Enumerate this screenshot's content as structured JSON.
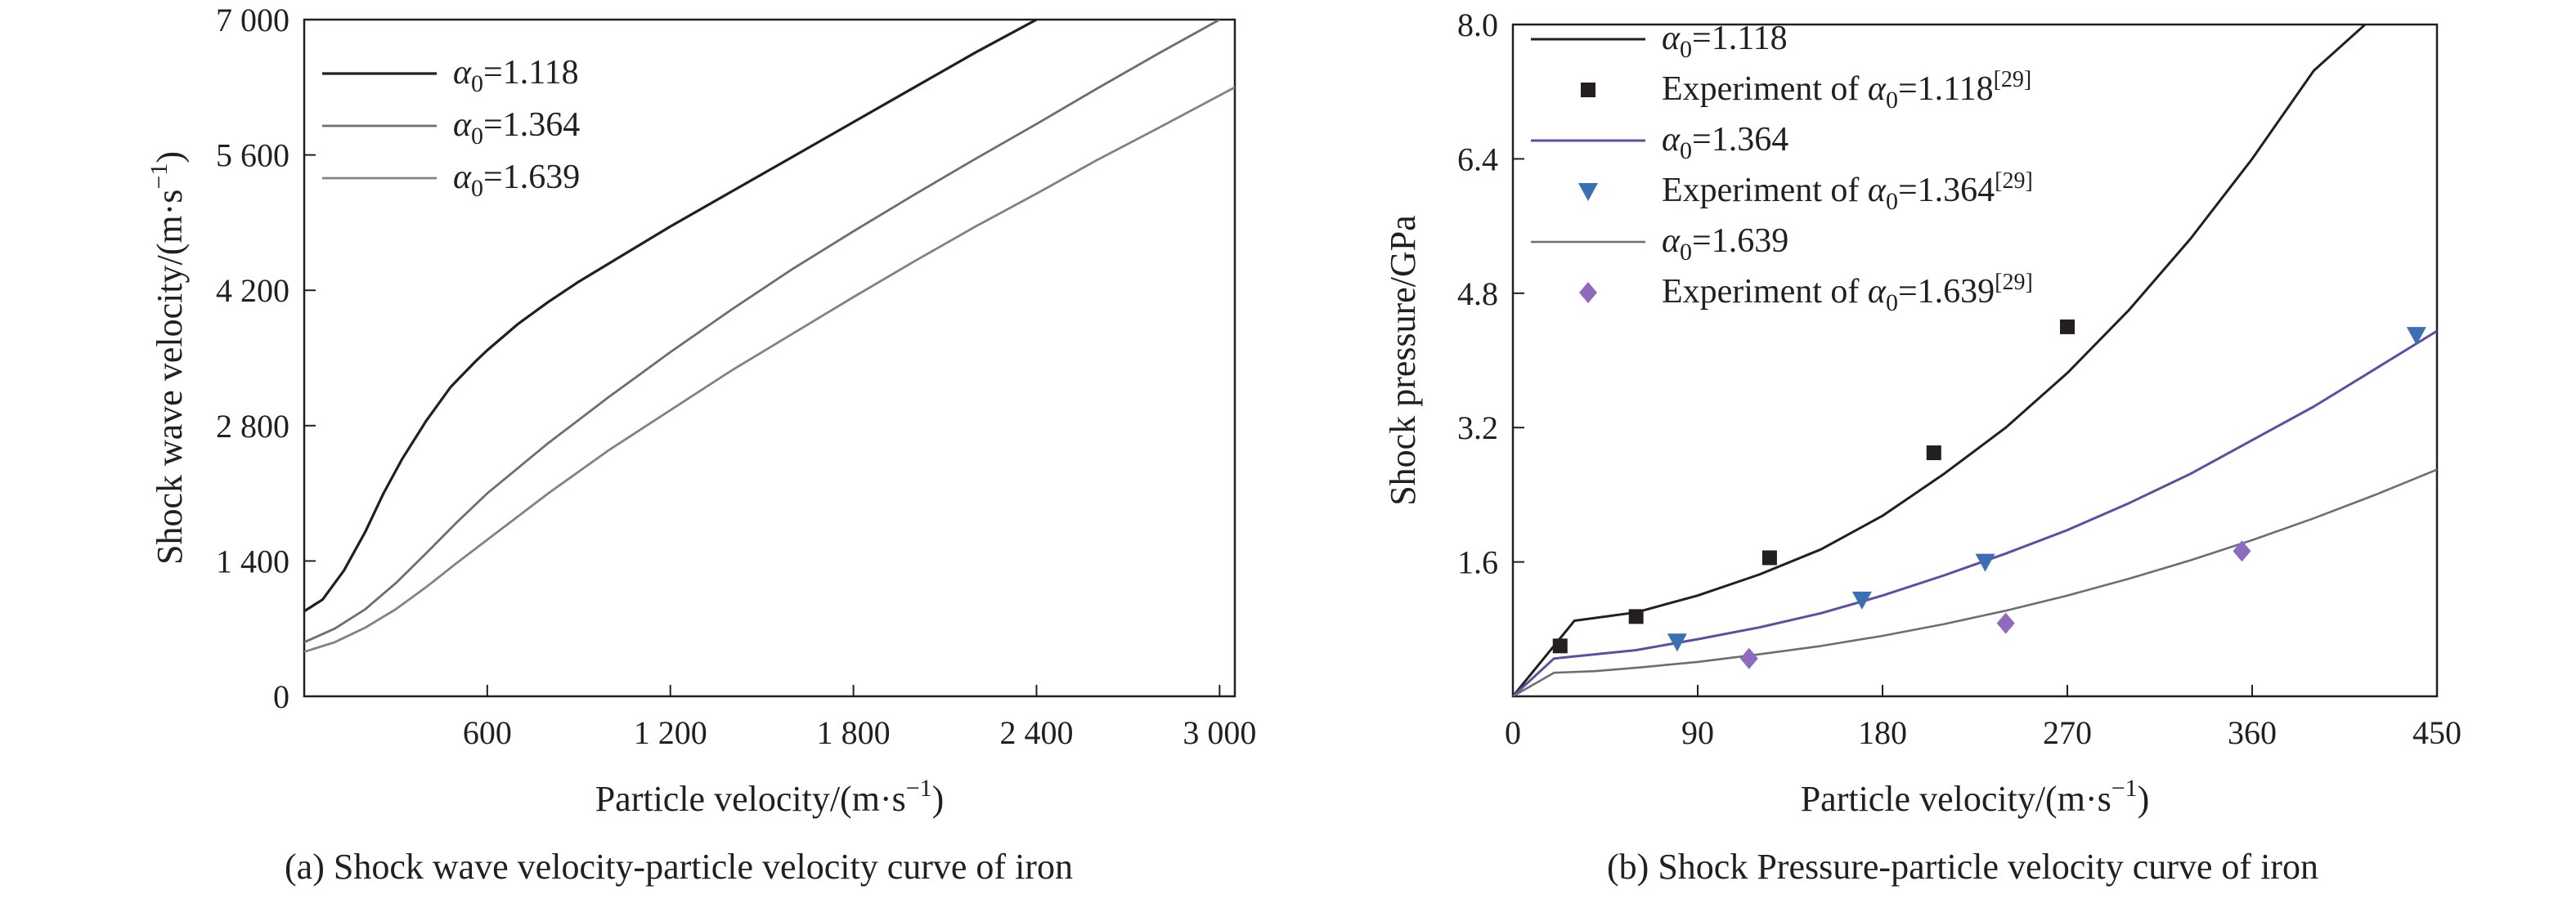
{
  "chart_data": [
    {
      "id": "a",
      "type": "line",
      "caption": "(a) Shock wave velocity-particle velocity curve of iron",
      "xlabel": "Particle velocity/(m·s⁻¹)",
      "ylabel": "Shock wave velocity/(m·s⁻¹)",
      "xlim": [
        0,
        3050
      ],
      "ylim": [
        0,
        7000
      ],
      "x_ticks": [
        600,
        1200,
        1800,
        2400,
        3000
      ],
      "x_tick_labels": [
        "600",
        "1 200",
        "1 800",
        "2 400",
        "3 000"
      ],
      "y_ticks": [
        0,
        1400,
        2800,
        4200,
        5600,
        7000
      ],
      "y_tick_labels": [
        "0",
        "1 400",
        "2 800",
        "4 200",
        "5 600",
        "7 000"
      ],
      "grid": false,
      "legend_position": "top-left",
      "series": [
        {
          "name": "1.118",
          "color": "#231f20",
          "width": 3.2,
          "x": [
            0,
            60,
            130,
            200,
            260,
            320,
            400,
            480,
            560,
            600,
            700,
            800,
            900,
            1000,
            1200,
            1400,
            1600,
            1800,
            2000,
            2200,
            2400
          ],
          "y": [
            880,
            1000,
            1300,
            1700,
            2100,
            2450,
            2850,
            3200,
            3460,
            3580,
            3850,
            4080,
            4290,
            4480,
            4860,
            5220,
            5580,
            5940,
            6300,
            6660,
            7000
          ]
        },
        {
          "name": "1.364",
          "color": "#6d6e71",
          "width": 2.8,
          "x": [
            0,
            100,
            200,
            300,
            400,
            500,
            600,
            800,
            1000,
            1200,
            1400,
            1600,
            1800,
            2000,
            2200,
            2400,
            2600,
            2800,
            3000
          ],
          "y": [
            560,
            700,
            900,
            1170,
            1480,
            1800,
            2100,
            2620,
            3100,
            3560,
            4000,
            4420,
            4810,
            5190,
            5560,
            5920,
            6290,
            6650,
            7000
          ]
        },
        {
          "name": "1.639",
          "color": "#808285",
          "width": 2.8,
          "x": [
            0,
            100,
            200,
            300,
            400,
            500,
            600,
            800,
            1000,
            1200,
            1400,
            1600,
            1800,
            2000,
            2200,
            2400,
            2600,
            2800,
            3050
          ],
          "y": [
            460,
            560,
            710,
            900,
            1130,
            1380,
            1620,
            2100,
            2550,
            2960,
            3370,
            3750,
            4130,
            4500,
            4860,
            5200,
            5550,
            5880,
            6300
          ]
        }
      ]
    },
    {
      "id": "b",
      "type": "line",
      "caption": "(b) Shock Pressure-particle velocity curve of iron",
      "xlabel": "Particle velocity/(m·s⁻¹)",
      "ylabel": "Shock pressure/GPa",
      "xlim": [
        0,
        450
      ],
      "ylim": [
        0,
        8.0
      ],
      "x_ticks": [
        0,
        90,
        180,
        270,
        360,
        450
      ],
      "x_tick_labels": [
        "0",
        "90",
        "180",
        "270",
        "360",
        "450"
      ],
      "y_ticks": [
        1.6,
        3.2,
        4.8,
        6.4,
        8.0
      ],
      "y_tick_labels": [
        "1.6",
        "3.2",
        "4.8",
        "6.4",
        "8.0"
      ],
      "grid": false,
      "legend_position": "top-left",
      "series": [
        {
          "name": "1.118",
          "color": "#231f20",
          "width": 3,
          "x": [
            0,
            30,
            60,
            90,
            120,
            150,
            180,
            210,
            240,
            270,
            300,
            330,
            360,
            390,
            415
          ],
          "y": [
            0,
            0.9,
            1.0,
            1.2,
            1.45,
            1.75,
            2.15,
            2.65,
            3.2,
            3.85,
            4.6,
            5.45,
            6.4,
            7.45,
            8.0
          ]
        },
        {
          "name": "Experiment of 1.118",
          "marker": "square",
          "color": "#231f20",
          "x": [
            23,
            60,
            125,
            205,
            270
          ],
          "y": [
            0.6,
            0.95,
            1.65,
            2.9,
            4.4
          ]
        },
        {
          "name": "1.364",
          "color": "#5b4fa3",
          "width": 3,
          "x": [
            0,
            20,
            40,
            60,
            90,
            120,
            150,
            180,
            210,
            240,
            270,
            300,
            330,
            360,
            390,
            420,
            450
          ],
          "y": [
            0,
            0.45,
            0.5,
            0.55,
            0.68,
            0.82,
            0.99,
            1.2,
            1.44,
            1.7,
            1.98,
            2.3,
            2.65,
            3.05,
            3.45,
            3.9,
            4.35
          ]
        },
        {
          "name": "Experiment of 1.364",
          "marker": "triangle-down",
          "color": "#3c6eb4",
          "x": [
            80,
            170,
            230,
            440
          ],
          "y": [
            0.65,
            1.15,
            1.6,
            4.3
          ]
        },
        {
          "name": "1.639",
          "color": "#6d6e71",
          "width": 2.6,
          "x": [
            0,
            20,
            40,
            60,
            90,
            120,
            150,
            180,
            210,
            240,
            270,
            300,
            330,
            360,
            390,
            420,
            450
          ],
          "y": [
            0,
            0.28,
            0.3,
            0.34,
            0.41,
            0.5,
            0.6,
            0.72,
            0.86,
            1.02,
            1.2,
            1.4,
            1.62,
            1.86,
            2.12,
            2.4,
            2.7
          ]
        },
        {
          "name": "Experiment of 1.639",
          "marker": "diamond",
          "color": "#8e6bbf",
          "x": [
            115,
            240,
            355
          ],
          "y": [
            0.45,
            0.87,
            1.73
          ]
        }
      ],
      "legend": [
        {
          "label_prefix": "1.118",
          "ref": ""
        },
        {
          "label_prefix": "Experiment of",
          "value": "1.118",
          "ref": "[29]"
        },
        {
          "label_prefix": "1.364",
          "ref": ""
        },
        {
          "label_prefix": "Experiment of",
          "value": "1.364",
          "ref": "[29]"
        },
        {
          "label_prefix": "1.639",
          "ref": ""
        },
        {
          "label_prefix": "Experiment of",
          "value": "1.639",
          "ref": "[29]"
        }
      ]
    }
  ]
}
